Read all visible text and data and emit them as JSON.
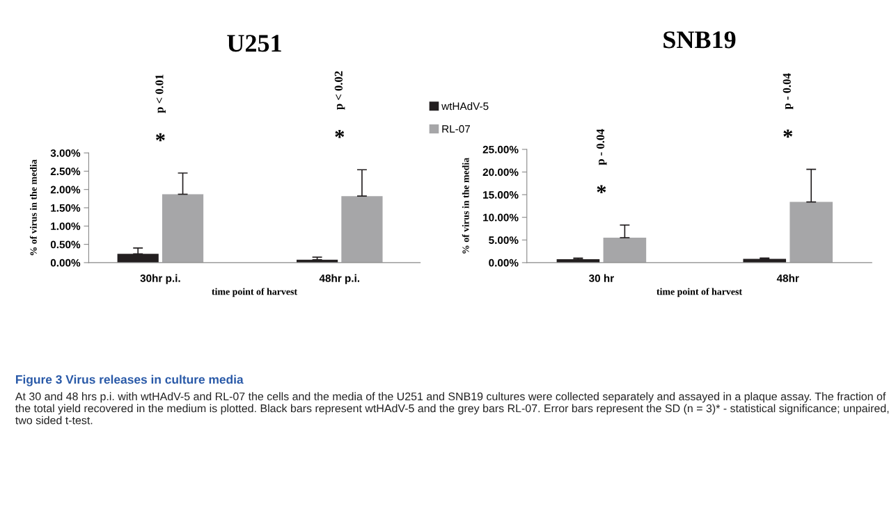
{
  "chart_data": [
    {
      "type": "bar",
      "title": "U251",
      "xlabel": "time point of harvest",
      "ylabel": "% of virus in the media",
      "categories": [
        "30hr p.i.",
        "48hr p.i."
      ],
      "series": [
        {
          "name": "wtHAdV-5",
          "color": "#231f20",
          "values": [
            0.24,
            0.08
          ],
          "errors": [
            0.16,
            0.07
          ]
        },
        {
          "name": "RL-07",
          "color": "#a6a6a8",
          "values": [
            1.87,
            1.82
          ],
          "errors": [
            0.58,
            0.72
          ]
        }
      ],
      "ylim": [
        0,
        3
      ],
      "yticks": [
        {
          "value": 0,
          "label": "0.00%"
        },
        {
          "value": 0.5,
          "label": "0.50%"
        },
        {
          "value": 1,
          "label": "1.00%"
        },
        {
          "value": 1.5,
          "label": "1.50%"
        },
        {
          "value": 2,
          "label": "2.00%"
        },
        {
          "value": 2.5,
          "label": "2.50%"
        },
        {
          "value": 3,
          "label": "3.00%"
        }
      ],
      "legend": "top right",
      "annotations": [
        "*",
        "p < 0.01",
        "*",
        "p < 0.02",
        "Figure 3 Virus releases in culture media",
        "At 30 and 48 hrs p.i. with wtHAdV-5 and RL-07 the cells and the media of the U251 and SNB19 cultures were collected separately and assayed in a plaque assay. The fraction of the total yield recovered in the medium is plotted. Black bars represent wtHAdV-5 and the grey bars RL-07. Error bars represent the SD (n = 3)* - statistical significance; unpaired, two sided t-test."
      ]
    },
    {
      "type": "bar",
      "title": "SNB19",
      "xlabel": "time point of harvest",
      "ylabel": "% of virus in the media",
      "categories": [
        "30 hr",
        "48hr"
      ],
      "series": [
        {
          "color": "#231f20",
          "values": [
            0.75,
            0.85
          ],
          "errors": [
            0.25,
            0.15
          ]
        },
        {
          "color": "#a6a6a8",
          "values": [
            5.5,
            13.4
          ],
          "errors": [
            2.8,
            7.2
          ]
        }
      ],
      "ylim": [
        0,
        25
      ],
      "yticks": [
        {
          "value": 0,
          "label": "0.00%"
        },
        {
          "value": 5,
          "label": "5.00%"
        },
        {
          "value": 10,
          "label": "10.00%"
        },
        {
          "value": 15,
          "label": "15.00%"
        },
        {
          "value": 20,
          "label": "20.00%"
        },
        {
          "value": 25,
          "label": "25.00%"
        }
      ],
      "annotations": [
        "*",
        "p - 0.04",
        "*",
        "p - 0.04"
      ]
    }
  ]
}
